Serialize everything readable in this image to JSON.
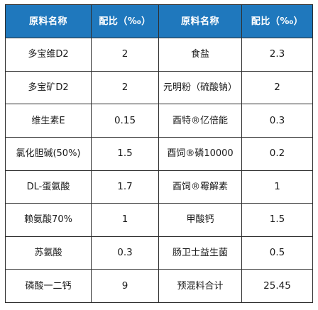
{
  "headers": [
    "原料名称",
    "配比（‰）",
    "原料名称",
    "配比（‰）"
  ],
  "rows": [
    {
      "name1": "多宝维D2",
      "value1": "2",
      "name2": "食盐",
      "value2": "2.3"
    },
    {
      "name1": "多宝矿D2",
      "value1": "2",
      "name2": "元明粉（硫酸钠）",
      "value2": "2"
    },
    {
      "name1": "维生素E",
      "value1": "0.15",
      "name2": "酉特®亿倍能",
      "value2": "0.3"
    },
    {
      "name1": "氯化胆碱(50%)",
      "value1": "1.5",
      "name2": "酉饲®磷10000",
      "value2": "0.2"
    },
    {
      "name1": "DL-蛋氨酸",
      "value1": "1.7",
      "name2": "酉饲®霉解素",
      "value2": "1"
    },
    {
      "name1": "赖氨酸70%",
      "value1": "1",
      "name2": "甲酸钙",
      "value2": "1.5"
    },
    {
      "name1": "苏氨酸",
      "value1": "0.3",
      "name2": "肠卫士益生菌",
      "value2": "0.5"
    },
    {
      "name1": "磷酸一二钙",
      "value1": "9",
      "name2": "预混料合计",
      "value2": "25.45"
    }
  ],
  "colors": {
    "header_bg": "#1f78bd",
    "header_text": "#ffffff",
    "border": "#2e2e2e"
  }
}
